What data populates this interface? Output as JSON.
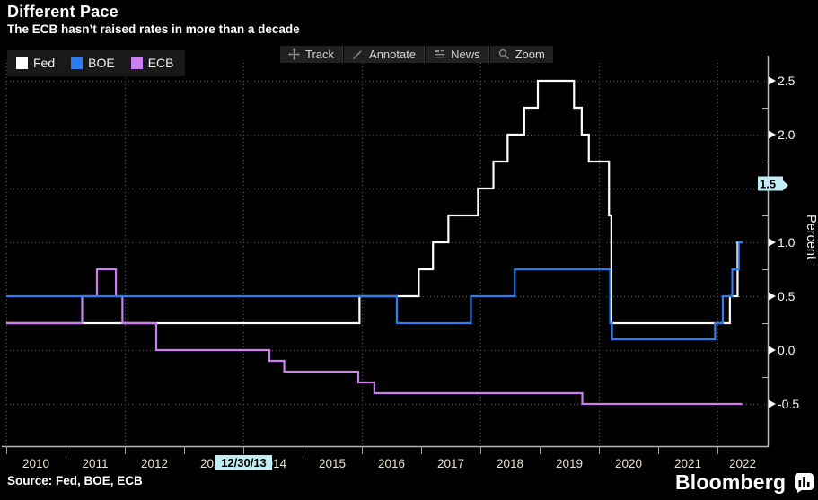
{
  "header": {
    "title": "Different Pace",
    "subtitle": "The ECB hasn’t raised rates in more than a decade"
  },
  "legend": {
    "items": [
      {
        "label": "Fed",
        "color": "#ffffff"
      },
      {
        "label": "BOE",
        "color": "#2b7df0"
      },
      {
        "label": "ECB",
        "color": "#cb7df2"
      }
    ]
  },
  "toolbar": {
    "buttons": [
      {
        "label": "Track",
        "icon": "move-crosshair-icon"
      },
      {
        "label": "Annotate",
        "icon": "pencil-icon"
      },
      {
        "label": "News",
        "icon": "news-lines-icon"
      },
      {
        "label": "Zoom",
        "icon": "magnifier-icon"
      }
    ]
  },
  "footer": {
    "source": "Source: Fed, BOE, ECB",
    "brand": "Bloomberg"
  },
  "chart_data": {
    "type": "line",
    "step": true,
    "title": "Different Pace",
    "subtitle": "The ECB hasn’t raised rates in more than a decade",
    "ylabel": "Percent",
    "ylim": [
      -0.75,
      2.7
    ],
    "y_ticks": [
      2.5,
      2.0,
      1.5,
      1.0,
      0.5,
      0.0,
      -0.5
    ],
    "y_minor_step": 0.25,
    "x_tick_years": [
      2010,
      2011,
      2012,
      2013,
      2014,
      2015,
      2016,
      2017,
      2018,
      2019,
      2020,
      2021,
      2022
    ],
    "grid_years": [
      2010,
      2012,
      2014,
      2016,
      2018,
      2020,
      2022
    ],
    "grid": "dotted",
    "end_x": 2022.42,
    "series": [
      {
        "name": "Fed",
        "color": "#ffffff",
        "points": [
          [
            2010.0,
            0.25
          ],
          [
            2015.96,
            0.5
          ],
          [
            2016.96,
            0.75
          ],
          [
            2017.2,
            1.0
          ],
          [
            2017.46,
            1.25
          ],
          [
            2017.96,
            1.5
          ],
          [
            2018.22,
            1.75
          ],
          [
            2018.46,
            2.0
          ],
          [
            2018.74,
            2.25
          ],
          [
            2018.97,
            2.5
          ],
          [
            2019.58,
            2.25
          ],
          [
            2019.71,
            2.0
          ],
          [
            2019.83,
            1.75
          ],
          [
            2020.17,
            1.25
          ],
          [
            2020.21,
            0.25
          ],
          [
            2022.21,
            0.5
          ],
          [
            2022.34,
            1.0
          ]
        ]
      },
      {
        "name": "BOE",
        "color": "#2b7df0",
        "points": [
          [
            2010.0,
            0.5
          ],
          [
            2016.59,
            0.25
          ],
          [
            2017.84,
            0.5
          ],
          [
            2018.58,
            0.75
          ],
          [
            2020.19,
            0.25
          ],
          [
            2020.22,
            0.1
          ],
          [
            2021.96,
            0.25
          ],
          [
            2022.09,
            0.5
          ],
          [
            2022.25,
            0.75
          ],
          [
            2022.36,
            1.0
          ]
        ]
      },
      {
        "name": "ECB",
        "color": "#cb7df2",
        "points": [
          [
            2010.0,
            0.25
          ],
          [
            2011.28,
            0.5
          ],
          [
            2011.53,
            0.75
          ],
          [
            2011.85,
            0.5
          ],
          [
            2011.96,
            0.25
          ],
          [
            2012.53,
            0.0
          ],
          [
            2014.44,
            -0.1
          ],
          [
            2014.69,
            -0.2
          ],
          [
            2015.94,
            -0.3
          ],
          [
            2016.21,
            -0.4
          ],
          [
            2019.72,
            -0.5
          ]
        ]
      }
    ],
    "tracker": {
      "date": "12/30/13",
      "value": "1.5",
      "badge_color": "#c2edf5"
    },
    "legend_position": "top-left"
  }
}
